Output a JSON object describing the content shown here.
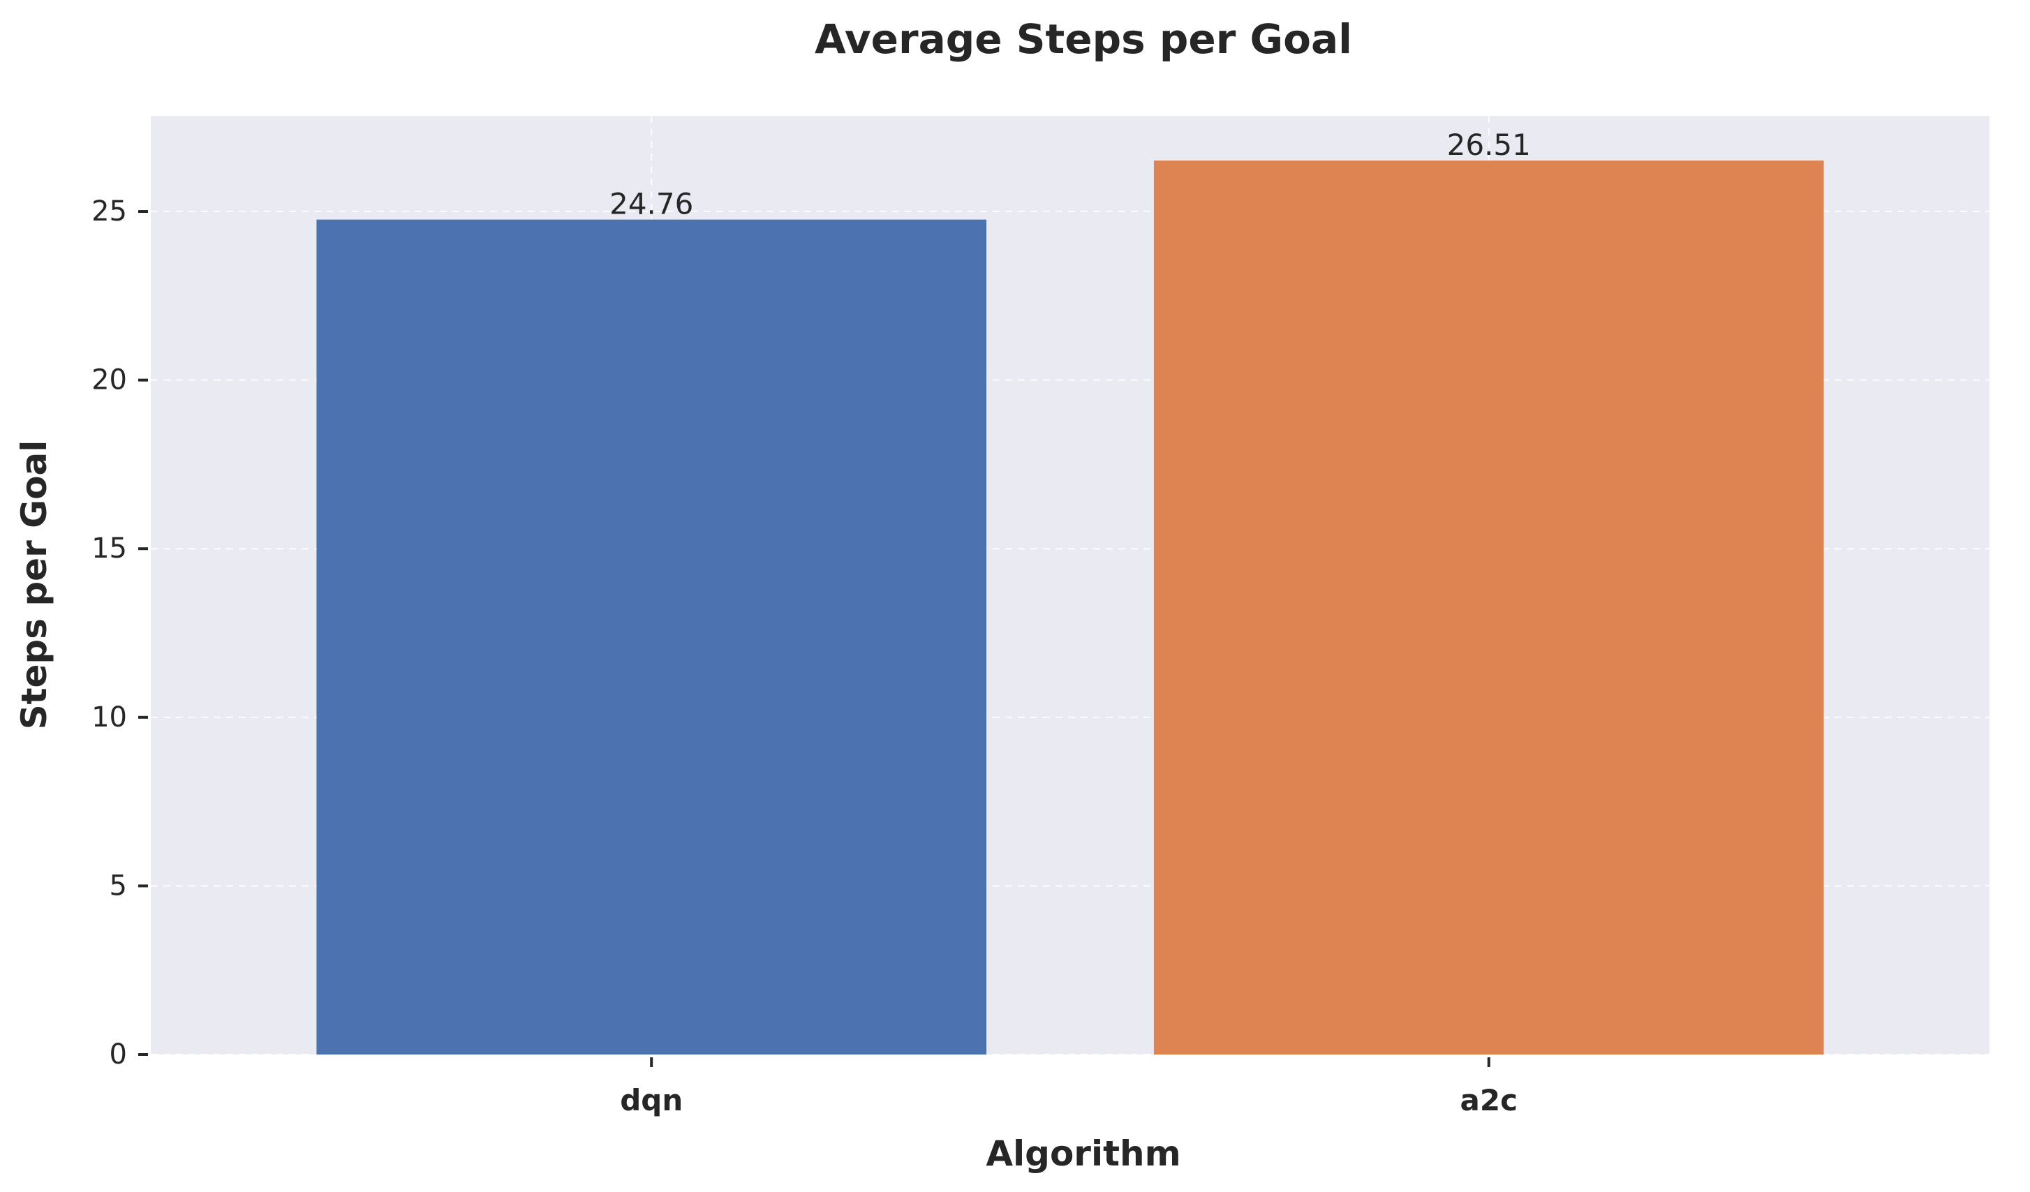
{
  "chart_data": {
    "type": "bar",
    "title": "Average Steps per Goal",
    "xlabel": "Algorithm",
    "ylabel": "Steps per Goal",
    "categories": [
      "dqn",
      "a2c"
    ],
    "values": [
      24.76,
      26.51
    ],
    "data_labels": [
      "24.76",
      "26.51"
    ],
    "colors": [
      "#4c72b0",
      "#dd8452"
    ],
    "ylim": [
      0,
      27.836
    ],
    "yticks": [
      0,
      5,
      10,
      15,
      20,
      25
    ],
    "ytick_labels": [
      "0",
      "5",
      "10",
      "15",
      "20",
      "25"
    ],
    "grid": true,
    "legend": "none",
    "style": {
      "plot_background": "#eaeaf2",
      "grid_color": "#ffffff",
      "text_color": "#262626"
    }
  }
}
